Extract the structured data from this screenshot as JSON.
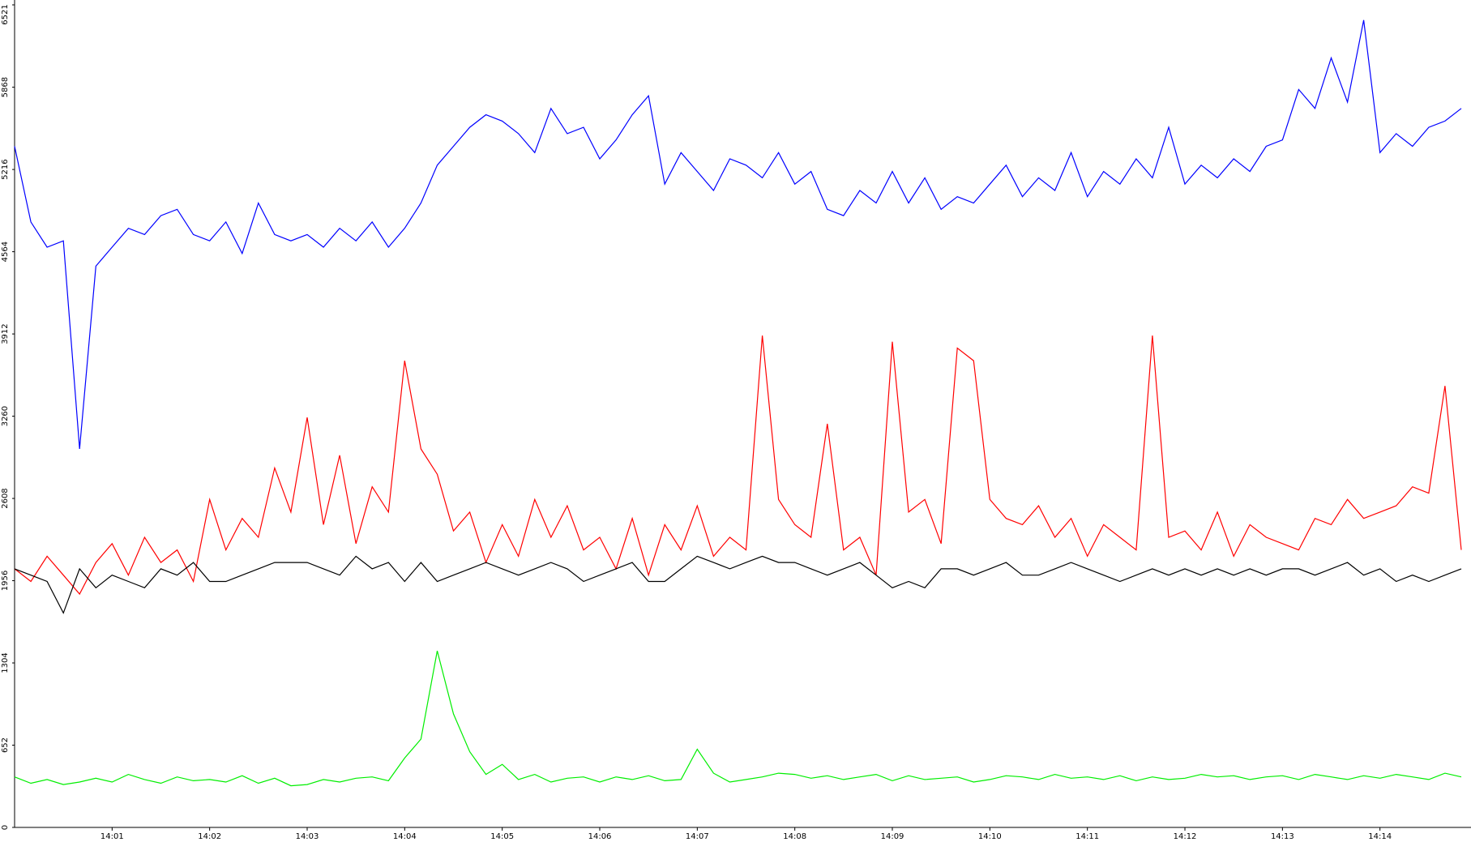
{
  "chart_data": {
    "type": "line",
    "categories": [
      null,
      null,
      null,
      null,
      null,
      null,
      "14:01",
      null,
      null,
      null,
      null,
      null,
      "14:02",
      null,
      null,
      null,
      null,
      null,
      "14:03",
      null,
      null,
      null,
      null,
      null,
      "14:04",
      null,
      null,
      null,
      null,
      null,
      "14:05",
      null,
      null,
      null,
      null,
      null,
      "14:06",
      null,
      null,
      null,
      null,
      null,
      "14:07",
      null,
      null,
      null,
      null,
      null,
      "14:08",
      null,
      null,
      null,
      null,
      null,
      "14:09",
      null,
      null,
      null,
      null,
      null,
      "14:10",
      null,
      null,
      null,
      null,
      null,
      "14:11",
      null,
      null,
      null,
      null,
      null,
      "14:12",
      null,
      null,
      null,
      null,
      null,
      "14:13",
      null,
      null,
      null,
      null,
      null,
      "14:14",
      null,
      null,
      null,
      null,
      null
    ],
    "ylim": [
      0,
      6521
    ],
    "yticks": [
      0,
      652,
      1304,
      1956,
      2608,
      3260,
      3912,
      4564,
      5216,
      5868,
      6521
    ],
    "series": [
      {
        "color": "#0000ff",
        "values": [
          5400,
          4800,
          4600,
          4650,
          3000,
          4450,
          4600,
          4750,
          4700,
          4850,
          4900,
          4700,
          4650,
          4800,
          4550,
          4950,
          4700,
          4650,
          4700,
          4600,
          4750,
          4650,
          4800,
          4600,
          4750,
          4950,
          5250,
          5400,
          5550,
          5650,
          5600,
          5500,
          5350,
          5700,
          5500,
          5550,
          5300,
          5450,
          5650,
          5800,
          5100,
          5350,
          5200,
          5050,
          5300,
          5250,
          5150,
          5350,
          5100,
          5200,
          4900,
          4850,
          5050,
          4950,
          5200,
          4950,
          5150,
          4900,
          5000,
          4950,
          5100,
          5250,
          5000,
          5150,
          5050,
          5350,
          5000,
          5200,
          5100,
          5300,
          5150,
          5550,
          5100,
          5250,
          5150,
          5300,
          5200,
          5400,
          5450,
          5850,
          5700,
          6100,
          5750,
          6400,
          5350,
          5500,
          5400,
          5550,
          5600,
          5700
        ]
      },
      {
        "color": "#ff0000",
        "values": [
          2050,
          1950,
          2150,
          2000,
          1850,
          2100,
          2250,
          2000,
          2300,
          2100,
          2200,
          1950,
          2600,
          2200,
          2450,
          2300,
          2850,
          2500,
          3250,
          2400,
          2950,
          2250,
          2700,
          2500,
          3700,
          3000,
          2800,
          2350,
          2500,
          2100,
          2400,
          2150,
          2600,
          2300,
          2550,
          2200,
          2300,
          2050,
          2450,
          2000,
          2400,
          2200,
          2550,
          2150,
          2300,
          2200,
          3900,
          2600,
          2400,
          2300,
          3200,
          2200,
          2300,
          2000,
          3850,
          2500,
          2600,
          2250,
          3800,
          3700,
          2600,
          2450,
          2400,
          2550,
          2300,
          2450,
          2150,
          2400,
          2300,
          2200,
          3900,
          2300,
          2350,
          2200,
          2500,
          2150,
          2400,
          2300,
          2250,
          2200,
          2450,
          2400,
          2600,
          2450,
          2500,
          2550,
          2700,
          2650,
          3500,
          2200
        ]
      },
      {
        "color": "#000000",
        "values": [
          2050,
          2000,
          1950,
          1700,
          2050,
          1900,
          2000,
          1950,
          1900,
          2050,
          2000,
          2100,
          1950,
          1950,
          2000,
          2050,
          2100,
          2100,
          2100,
          2050,
          2000,
          2150,
          2050,
          2100,
          1950,
          2100,
          1950,
          2000,
          2050,
          2100,
          2050,
          2000,
          2050,
          2100,
          2050,
          1950,
          2000,
          2050,
          2100,
          1950,
          1950,
          2050,
          2150,
          2100,
          2050,
          2100,
          2150,
          2100,
          2100,
          2050,
          2000,
          2050,
          2100,
          2000,
          1900,
          1950,
          1900,
          2050,
          2050,
          2000,
          2050,
          2100,
          2000,
          2000,
          2050,
          2100,
          2050,
          2000,
          1950,
          2000,
          2050,
          2000,
          2050,
          2000,
          2050,
          2000,
          2050,
          2000,
          2050,
          2050,
          2000,
          2050,
          2100,
          2000,
          2050,
          1950,
          2000,
          1950,
          2000,
          2050
        ]
      },
      {
        "color": "#00ee00",
        "values": [
          400,
          350,
          380,
          340,
          360,
          390,
          360,
          420,
          380,
          350,
          400,
          370,
          380,
          360,
          410,
          350,
          390,
          330,
          340,
          380,
          360,
          390,
          400,
          370,
          550,
          700,
          1400,
          900,
          600,
          420,
          500,
          380,
          420,
          360,
          390,
          400,
          360,
          400,
          380,
          410,
          370,
          380,
          620,
          430,
          360,
          380,
          400,
          430,
          420,
          390,
          410,
          380,
          400,
          420,
          370,
          410,
          380,
          390,
          400,
          360,
          380,
          410,
          400,
          380,
          420,
          390,
          400,
          380,
          410,
          370,
          400,
          380,
          390,
          420,
          400,
          410,
          380,
          400,
          410,
          380,
          420,
          400,
          380,
          410,
          390,
          420,
          400,
          380,
          430,
          400
        ]
      }
    ]
  }
}
